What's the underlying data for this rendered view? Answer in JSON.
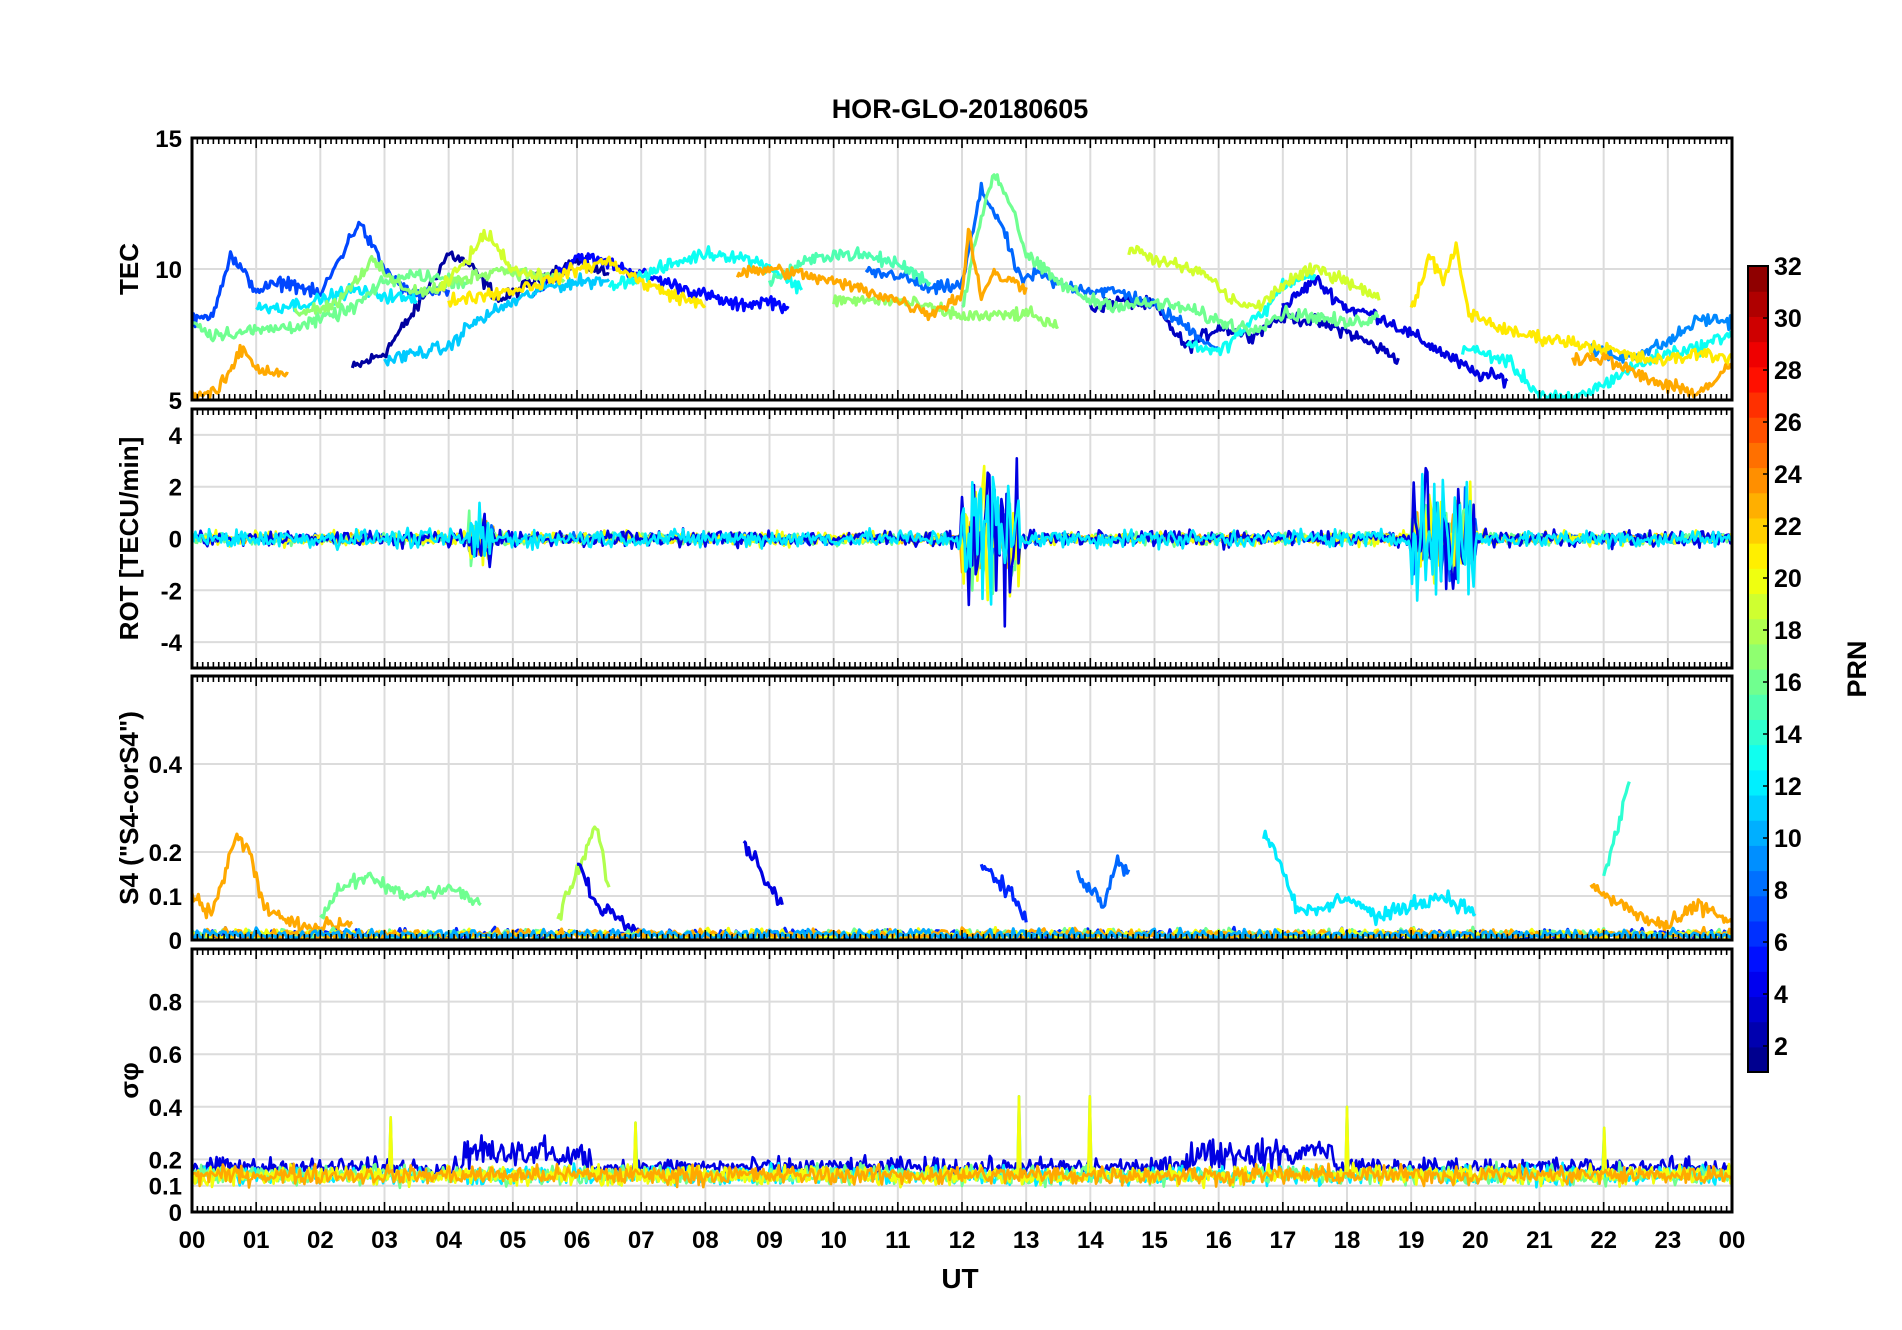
{
  "chart_data": {
    "type": "line",
    "title": "HOR-GLO-20180605",
    "xlabel": "UT",
    "x_tick_labels": [
      "00",
      "01",
      "02",
      "03",
      "04",
      "05",
      "06",
      "07",
      "08",
      "09",
      "10",
      "11",
      "12",
      "13",
      "14",
      "15",
      "16",
      "17",
      "18",
      "19",
      "20",
      "21",
      "22",
      "23",
      "00"
    ],
    "xlim": [
      0,
      24
    ],
    "grid": true,
    "colorbar": {
      "label": "PRN",
      "range": [
        1,
        32
      ],
      "ticks": [
        "2",
        "4",
        "6",
        "8",
        "10",
        "12",
        "14",
        "16",
        "18",
        "20",
        "22",
        "24",
        "26",
        "28",
        "30",
        "32"
      ],
      "colormap": "jet"
    },
    "panels": [
      {
        "ylabel": "TEC",
        "ylim": [
          5,
          15
        ],
        "yticks": [
          "5",
          "10",
          "15"
        ],
        "series": [
          {
            "prn": 2,
            "x": [
              2.5,
              3.0,
              3.5,
              4.0,
              4.3,
              4.8,
              5.3,
              6.0,
              6.5
            ],
            "y": [
              6.2,
              6.8,
              8.5,
              10.6,
              10.2,
              8.8,
              9.5,
              10.3,
              9.8
            ]
          },
          {
            "prn": 3,
            "x": [
              14.0,
              14.5,
              15.0,
              15.5,
              16.0,
              16.5,
              17.0,
              17.5,
              18.0,
              18.8
            ],
            "y": [
              8.5,
              8.8,
              8.6,
              7.0,
              7.8,
              7.5,
              8.2,
              8.0,
              7.6,
              6.6
            ]
          },
          {
            "prn": 4,
            "x": [
              17.0,
              17.5,
              18.0,
              18.5,
              19.0,
              19.5,
              20.0,
              20.5
            ],
            "y": [
              8.5,
              9.6,
              8.5,
              8.2,
              7.5,
              6.8,
              6.0,
              5.8
            ]
          },
          {
            "prn": 5,
            "x": [
              5.3,
              6.0,
              6.5,
              7.0,
              7.5,
              8.0,
              8.5,
              9.0,
              9.3
            ],
            "y": [
              9.0,
              10.5,
              10.2,
              9.8,
              9.4,
              9.0,
              8.6,
              8.8,
              8.5
            ]
          },
          {
            "prn": 7,
            "x": [
              0.0,
              0.3,
              0.6,
              1.0,
              1.5,
              2.0,
              2.6,
              3.0,
              3.4,
              4.0
            ],
            "y": [
              8.0,
              8.2,
              10.5,
              9.2,
              9.5,
              9.0,
              11.8,
              10.0,
              9.0,
              9.2
            ]
          },
          {
            "prn": 8,
            "x": [
              10.5,
              11.0,
              11.5,
              12.0,
              12.3,
              12.6,
              12.9,
              13.2,
              13.5,
              14.0,
              14.5,
              15.0,
              15.5,
              16.0
            ],
            "y": [
              9.8,
              9.8,
              9.2,
              9.4,
              13.0,
              11.8,
              9.6,
              9.8,
              9.4,
              9.2,
              9.1,
              8.6,
              7.8,
              6.9
            ]
          },
          {
            "prn": 9,
            "x": [
              21.8,
              22.2,
              22.6,
              23.0,
              23.5,
              24.0
            ],
            "y": [
              7.0,
              6.6,
              6.8,
              7.2,
              8.1,
              8.0
            ]
          },
          {
            "prn": 11,
            "x": [
              3.0,
              3.5,
              4.0,
              4.3,
              4.8,
              5.5,
              6.0,
              6.5
            ],
            "y": [
              6.5,
              6.8,
              7.0,
              7.8,
              8.5,
              9.3,
              9.5,
              9.6
            ]
          },
          {
            "prn": 12,
            "x": [
              1.0,
              1.5,
              2.0,
              2.5,
              3.0,
              3.5
            ],
            "y": [
              8.5,
              8.6,
              8.8,
              9.2,
              9.0,
              8.8
            ]
          },
          {
            "prn": 13,
            "x": [
              6.5,
              7.0,
              7.5,
              8.0,
              8.5,
              9.0,
              9.5
            ],
            "y": [
              9.4,
              9.7,
              10.2,
              10.6,
              10.5,
              10.1,
              9.2
            ]
          },
          {
            "prn": 13,
            "x": [
              15.5,
              16.0,
              16.3,
              16.8,
              17.0,
              17.5
            ],
            "y": [
              7.2,
              6.8,
              7.5,
              8.6,
              9.4,
              9.8
            ]
          },
          {
            "prn": 13,
            "x": [
              19.8,
              20.5,
              21.0,
              21.5,
              22.0,
              22.5,
              23.0,
              23.5,
              24.0
            ],
            "y": [
              7.0,
              6.5,
              5.2,
              5.0,
              5.6,
              6.3,
              6.8,
              7.0,
              7.6
            ]
          },
          {
            "prn": 15,
            "x": [
              9.0,
              9.5,
              10.0,
              10.5,
              11.0,
              11.5
            ],
            "y": [
              9.5,
              10.2,
              10.6,
              10.5,
              10.2,
              9.5
            ]
          },
          {
            "prn": 16,
            "x": [
              0.0,
              0.3,
              0.8,
              1.2,
              1.8,
              2.5,
              3.0,
              3.5,
              4.0,
              4.3
            ],
            "y": [
              8.0,
              7.5,
              7.6,
              7.7,
              7.9,
              8.5,
              9.5,
              9.8,
              9.6,
              9.5
            ]
          },
          {
            "prn": 16,
            "x": [
              12.0,
              12.3,
              12.5,
              12.8,
              13.0,
              13.5,
              14.0,
              14.5,
              15.0,
              15.5,
              16.0,
              16.5,
              17.0,
              17.5,
              18.0,
              18.5
            ],
            "y": [
              8.5,
              12.0,
              13.7,
              12.3,
              10.5,
              9.5,
              8.8,
              8.6,
              8.7,
              8.5,
              8.0,
              7.7,
              8.3,
              8.2,
              7.9,
              8.2
            ]
          },
          {
            "prn": 17,
            "x": [
              1.6,
              2.2,
              2.8,
              3.2,
              3.6,
              4.2,
              4.8,
              5.3,
              5.8
            ],
            "y": [
              8.4,
              8.6,
              10.3,
              9.4,
              9.1,
              9.6,
              10.0,
              9.8,
              9.6
            ]
          },
          {
            "prn": 17,
            "x": [
              10.0,
              11.0,
              12.0,
              12.5,
              13.0,
              13.5
            ],
            "y": [
              8.8,
              8.8,
              8.2,
              8.2,
              8.3,
              7.8
            ]
          },
          {
            "prn": 19,
            "x": [
              3.8,
              4.3,
              4.6,
              5.0,
              5.5
            ],
            "y": [
              9.0,
              10.4,
              11.4,
              10.0,
              9.6
            ]
          },
          {
            "prn": 19,
            "x": [
              14.6,
              15.2,
              15.8,
              16.2,
              16.6,
              17.0,
              17.5,
              18.0,
              18.5
            ],
            "y": [
              10.8,
              10.2,
              9.8,
              8.8,
              8.5,
              9.4,
              10.0,
              9.6,
              8.8
            ]
          },
          {
            "prn": 21,
            "x": [
              4.0,
              4.5,
              5.0,
              5.5,
              6.0,
              6.5,
              7.0,
              7.5,
              8.0
            ],
            "y": [
              8.8,
              9.0,
              9.2,
              9.5,
              10.0,
              10.3,
              9.5,
              9.0,
              8.6
            ]
          },
          {
            "prn": 21,
            "x": [
              19.0,
              19.3,
              19.5,
              19.7,
              19.9,
              20.2,
              20.5,
              21.0,
              21.5,
              22.0,
              22.5,
              23.0,
              23.5,
              24.0
            ],
            "y": [
              8.5,
              10.5,
              9.5,
              10.8,
              8.3,
              8.0,
              7.6,
              7.4,
              7.2,
              7.0,
              6.6,
              6.5,
              6.8,
              6.6
            ]
          },
          {
            "prn": 23,
            "x": [
              0.0,
              0.4,
              0.8,
              1.0,
              1.5
            ],
            "y": [
              5.2,
              5.3,
              7.0,
              6.2,
              6.0
            ]
          },
          {
            "prn": 23,
            "x": [
              8.5,
              9.0,
              9.5,
              10.0,
              10.5,
              11.0,
              11.5,
              12.0,
              12.1,
              12.3,
              12.5,
              13.0
            ],
            "y": [
              9.8,
              10.0,
              9.8,
              9.5,
              9.2,
              8.8,
              8.3,
              9.0,
              11.5,
              9.0,
              9.8,
              9.3
            ]
          },
          {
            "prn": 23,
            "x": [
              21.5,
              22.0,
              22.5,
              23.0,
              23.5,
              24.0
            ],
            "y": [
              6.6,
              6.6,
              6.0,
              5.5,
              5.3,
              6.3
            ]
          }
        ]
      },
      {
        "ylabel": "ROT [TECU/min]",
        "ylim": [
          -5,
          5
        ],
        "yticks": [
          "-4",
          "-2",
          "0",
          "2",
          "4"
        ]
      },
      {
        "ylabel": "S4 (\"S4-corS4\")",
        "ylim": [
          0,
          0.6
        ],
        "yticks": [
          "0",
          "0.1",
          "0.2",
          "0.4"
        ],
        "series": [
          {
            "prn": 23,
            "x": [
              0.0,
              0.3,
              0.7,
              0.9,
              1.1,
              1.5,
              2.0,
              2.5
            ],
            "y": [
              0.1,
              0.06,
              0.24,
              0.2,
              0.08,
              0.04,
              0.03,
              0.04
            ]
          },
          {
            "prn": 16,
            "x": [
              2.0,
              2.3,
              2.8,
              3.3,
              4.0,
              4.5
            ],
            "y": [
              0.05,
              0.12,
              0.14,
              0.1,
              0.12,
              0.08
            ]
          },
          {
            "prn": 18,
            "x": [
              5.7,
              6.0,
              6.3,
              6.5
            ],
            "y": [
              0.05,
              0.15,
              0.26,
              0.12
            ]
          },
          {
            "prn": 4,
            "x": [
              6.0,
              6.3,
              6.6,
              7.0
            ],
            "y": [
              0.18,
              0.08,
              0.06,
              0.02
            ]
          },
          {
            "prn": 4,
            "x": [
              8.6,
              8.8,
              9.0,
              9.2
            ],
            "y": [
              0.22,
              0.18,
              0.12,
              0.08
            ]
          },
          {
            "prn": 6,
            "x": [
              12.3,
              12.5,
              12.8,
              13.0
            ],
            "y": [
              0.18,
              0.14,
              0.1,
              0.04
            ]
          },
          {
            "prn": 8,
            "x": [
              13.8,
              14.0,
              14.2,
              14.4,
              14.6
            ],
            "y": [
              0.15,
              0.12,
              0.08,
              0.18,
              0.16
            ]
          },
          {
            "prn": 12,
            "x": [
              16.7,
              16.9,
              17.2,
              17.5,
              18.0,
              18.5,
              19.0,
              19.5,
              20.0
            ],
            "y": [
              0.24,
              0.2,
              0.08,
              0.06,
              0.1,
              0.05,
              0.08,
              0.1,
              0.06
            ]
          },
          {
            "prn": 14,
            "x": [
              22.0,
              22.2,
              22.4
            ],
            "y": [
              0.15,
              0.24,
              0.36
            ]
          },
          {
            "prn": 23,
            "x": [
              21.8,
              22.0,
              22.3,
              22.6,
              23.0,
              23.5,
              24.0
            ],
            "y": [
              0.13,
              0.1,
              0.08,
              0.05,
              0.03,
              0.08,
              0.04
            ]
          }
        ]
      },
      {
        "ylabel": "σφ",
        "ylim": [
          0,
          1
        ],
        "yticks": [
          "0",
          "0.1",
          "0.2",
          "0.4",
          "0.6",
          "0.8"
        ]
      }
    ]
  }
}
